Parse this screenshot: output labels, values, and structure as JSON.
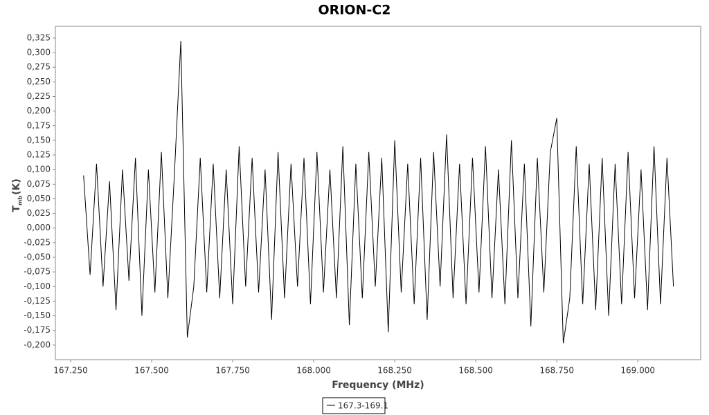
{
  "chart_data": {
    "type": "line",
    "title": "ORION-C2",
    "x_label": "Frequency (MHz)",
    "y_label": "T",
    "y_label_sub": "mb",
    "y_label_unit": "(K)",
    "xlim": [
      167.203,
      169.194
    ],
    "ylim": [
      -0.225,
      0.345
    ],
    "xticks": [
      {
        "value": 167.25,
        "label": "167.250"
      },
      {
        "value": 167.5,
        "label": "167.500"
      },
      {
        "value": 167.75,
        "label": "167.750"
      },
      {
        "value": 168,
        "label": "168.000"
      },
      {
        "value": 168.25,
        "label": "168.250"
      },
      {
        "value": 168.5,
        "label": "168.500"
      },
      {
        "value": 168.75,
        "label": "168.750"
      },
      {
        "value": 169,
        "label": "169.000"
      }
    ],
    "yticks": [
      {
        "value": -0.2,
        "label": "-0,200"
      },
      {
        "value": -0.175,
        "label": "-0,175"
      },
      {
        "value": -0.15,
        "label": "-0,150"
      },
      {
        "value": -0.125,
        "label": "-0,125"
      },
      {
        "value": -0.1,
        "label": "-0,100"
      },
      {
        "value": -0.075,
        "label": "-0,075"
      },
      {
        "value": -0.05,
        "label": "-0,050"
      },
      {
        "value": -0.025,
        "label": "-0,025"
      },
      {
        "value": 0,
        "label": "0,000"
      },
      {
        "value": 0.025,
        "label": "0,025"
      },
      {
        "value": 0.05,
        "label": "0,050"
      },
      {
        "value": 0.075,
        "label": "0,075"
      },
      {
        "value": 0.1,
        "label": "0,100"
      },
      {
        "value": 0.125,
        "label": "0,125"
      },
      {
        "value": 0.15,
        "label": "0,150"
      },
      {
        "value": 0.175,
        "label": "0,175"
      },
      {
        "value": 0.2,
        "label": "0,200"
      },
      {
        "value": 0.225,
        "label": "0,225"
      },
      {
        "value": 0.25,
        "label": "0,250"
      },
      {
        "value": 0.275,
        "label": "0,275"
      },
      {
        "value": 0.3,
        "label": "0,300"
      },
      {
        "value": 0.325,
        "label": "0,325"
      }
    ],
    "x": [
      167.29,
      167.31,
      167.33,
      167.35,
      167.37,
      167.39,
      167.41,
      167.43,
      167.45,
      167.47,
      167.49,
      167.51,
      167.53,
      167.55,
      167.57,
      167.59,
      167.61,
      167.63,
      167.65,
      167.67,
      167.69,
      167.71,
      167.73,
      167.75,
      167.77,
      167.79,
      167.81,
      167.83,
      167.85,
      167.87,
      167.89,
      167.91,
      167.93,
      167.95,
      167.97,
      167.99,
      168.01,
      168.03,
      168.05,
      168.07,
      168.09,
      168.11,
      168.13,
      168.15,
      168.17,
      168.19,
      168.21,
      168.23,
      168.25,
      168.27,
      168.29,
      168.31,
      168.33,
      168.35,
      168.37,
      168.39,
      168.41,
      168.43,
      168.45,
      168.47,
      168.49,
      168.51,
      168.53,
      168.55,
      168.57,
      168.59,
      168.61,
      168.63,
      168.65,
      168.67,
      168.69,
      168.71,
      168.73,
      168.75,
      168.77,
      168.79,
      168.81,
      168.83,
      168.85,
      168.87,
      168.89,
      168.91,
      168.93,
      168.95,
      168.97,
      168.99,
      169.01,
      169.03,
      169.05,
      169.07,
      169.09,
      169.11
    ],
    "series": [
      {
        "name": "167.3-169.1",
        "color": "#000000",
        "values": [
          0.09,
          -0.08,
          0.11,
          -0.1,
          0.08,
          -0.14,
          0.1,
          -0.09,
          0.12,
          -0.15,
          0.1,
          -0.11,
          0.13,
          -0.12,
          0.09,
          0.32,
          -0.187,
          -0.1,
          0.12,
          -0.11,
          0.11,
          -0.12,
          0.1,
          -0.13,
          0.14,
          -0.1,
          0.12,
          -0.11,
          0.1,
          -0.157,
          0.13,
          -0.12,
          0.11,
          -0.1,
          0.12,
          -0.13,
          0.13,
          -0.11,
          0.1,
          -0.12,
          0.14,
          -0.166,
          0.11,
          -0.12,
          0.13,
          -0.1,
          0.12,
          -0.178,
          0.15,
          -0.11,
          0.11,
          -0.13,
          0.12,
          -0.157,
          0.13,
          -0.1,
          0.16,
          -0.12,
          0.11,
          -0.13,
          0.12,
          -0.11,
          0.14,
          -0.12,
          0.1,
          -0.13,
          0.15,
          -0.12,
          0.11,
          -0.168,
          0.12,
          -0.11,
          0.13,
          0.188,
          -0.197,
          -0.12,
          0.14,
          -0.13,
          0.11,
          -0.14,
          0.12,
          -0.15,
          0.11,
          -0.13,
          0.13,
          -0.12,
          0.1,
          -0.14,
          0.14,
          -0.13,
          0.12,
          -0.1
        ]
      }
    ]
  }
}
